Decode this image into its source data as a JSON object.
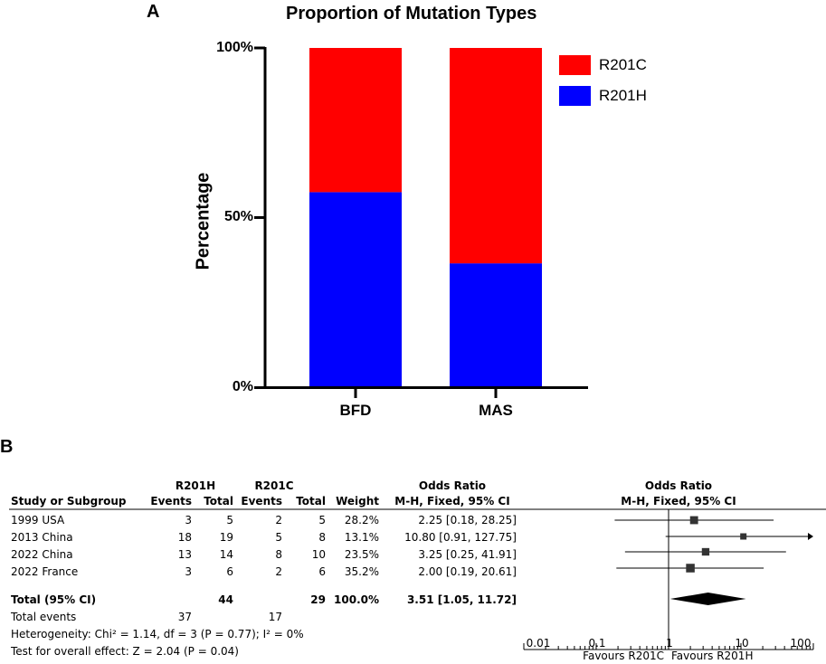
{
  "panel_a": "A",
  "panel_b": "B",
  "chart_data": [
    {
      "type": "bar",
      "stacked": true,
      "title": "Proportion of Mutation Types",
      "ylabel": "Percentage",
      "xlabel": "",
      "categories": [
        "BFD",
        "MAS"
      ],
      "series": [
        {
          "name": "R201H",
          "color": "#0000ff",
          "values": [
            57.5,
            36.5
          ]
        },
        {
          "name": "R201C",
          "color": "#ff0000",
          "values": [
            42.5,
            63.5
          ]
        }
      ],
      "ylim": [
        0,
        100
      ],
      "yticks": [
        "0%",
        "50%",
        "100%"
      ],
      "legend": [
        "R201C",
        "R201H"
      ],
      "legend_position": "top-right"
    },
    {
      "type": "forest",
      "title": "Odds Ratio",
      "subtitle": "M-H, Fixed, 95% CI",
      "headers": {
        "group1": "R201H",
        "group2": "R201C",
        "study": "Study or Subgroup",
        "events": "Events",
        "total": "Total",
        "weight": "Weight",
        "or_title": "Odds Ratio",
        "or_sub": "M-H, Fixed, 95% CI"
      },
      "studies": [
        {
          "name": "1999 USA",
          "e1": "3",
          "t1": "5",
          "e2": "2",
          "t2": "5",
          "weight": "28.2%",
          "ci_text": "2.25 [0.18, 28.25]",
          "or": 2.25,
          "lo": 0.18,
          "hi": 28.25,
          "w": 28.2
        },
        {
          "name": "2013 China",
          "e1": "18",
          "t1": "19",
          "e2": "5",
          "t2": "8",
          "weight": "13.1%",
          "ci_text": "10.80 [0.91, 127.75]",
          "or": 10.8,
          "lo": 0.91,
          "hi": 127.75,
          "w": 13.1
        },
        {
          "name": "2022 China",
          "e1": "13",
          "t1": "14",
          "e2": "8",
          "t2": "10",
          "weight": "23.5%",
          "ci_text": "3.25 [0.25, 41.91]",
          "or": 3.25,
          "lo": 0.25,
          "hi": 41.91,
          "w": 23.5
        },
        {
          "name": "2022 France",
          "e1": "3",
          "t1": "6",
          "e2": "2",
          "t2": "6",
          "weight": "35.2%",
          "ci_text": "2.00 [0.19, 20.61]",
          "or": 2.0,
          "lo": 0.19,
          "hi": 20.61,
          "w": 35.2
        }
      ],
      "total": {
        "name": "Total (95% CI)",
        "t1": "44",
        "t2": "29",
        "weight": "100.0%",
        "ci_text": "3.51 [1.05, 11.72]",
        "or": 3.51,
        "lo": 1.05,
        "hi": 11.72
      },
      "total_events": {
        "label": "Total events",
        "e1": "37",
        "e2": "17"
      },
      "heterogeneity": "Heterogeneity: Chi² = 1.14, df = 3 (P = 0.77); I² = 0%",
      "overall_effect": "Test for overall effect: Z = 2.04 (P = 0.04)",
      "axis_ticks": [
        {
          "value": 0.01,
          "label": "0.01"
        },
        {
          "value": 0.1,
          "label": "0.1"
        },
        {
          "value": 1,
          "label": "1"
        },
        {
          "value": 10,
          "label": "10"
        },
        {
          "value": 100,
          "label": "100"
        }
      ],
      "favours_left": "Favours R201C",
      "favours_right": "Favours R201H",
      "scale": "log"
    }
  ]
}
